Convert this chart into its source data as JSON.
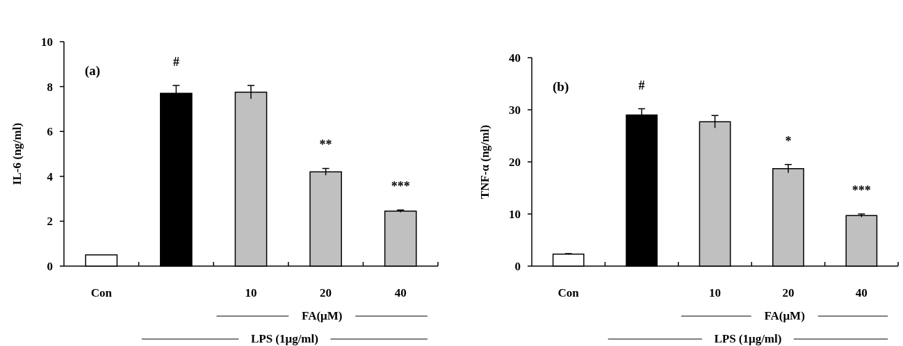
{
  "chart_data": [
    {
      "type": "bar",
      "ylabel": "IL-6 (ng/ml)",
      "categories": [
        "Con",
        null,
        "10",
        "20",
        "40"
      ],
      "values": [
        0.5,
        7.7,
        7.75,
        4.2,
        2.45
      ],
      "errors": [
        null,
        0.35,
        0.3,
        0.15,
        0.05
      ],
      "colors": [
        "#ffffff",
        "#000000",
        "#c0c0c0",
        "#c0c0c0",
        "#c0c0c0"
      ],
      "value_labels": [
        null,
        "#",
        null,
        "**",
        "***"
      ],
      "ylim": [
        0,
        10
      ],
      "yticks": [
        0,
        2,
        4,
        6,
        8,
        10
      ],
      "annotations": [
        "(a)",
        "FA(μM)",
        "LPS (1μg/ml)"
      ],
      "grid": false
    },
    {
      "type": "bar",
      "ylabel": "TNF-α (ng/ml)",
      "categories": [
        "Con",
        null,
        "10",
        "20",
        "40"
      ],
      "values": [
        2.3,
        29,
        27.7,
        18.7,
        9.7
      ],
      "errors": [
        0.1,
        1.2,
        1.2,
        0.8,
        0.3
      ],
      "colors": [
        "#ffffff",
        "#000000",
        "#c0c0c0",
        "#c0c0c0",
        "#c0c0c0"
      ],
      "value_labels": [
        null,
        "#",
        null,
        "*",
        "***"
      ],
      "ylim": [
        0,
        40
      ],
      "yticks": [
        0,
        10,
        20,
        30,
        40
      ],
      "annotations": [
        "(b)",
        "FA(μM)",
        "LPS (1μg/ml)"
      ],
      "grid": false
    }
  ]
}
